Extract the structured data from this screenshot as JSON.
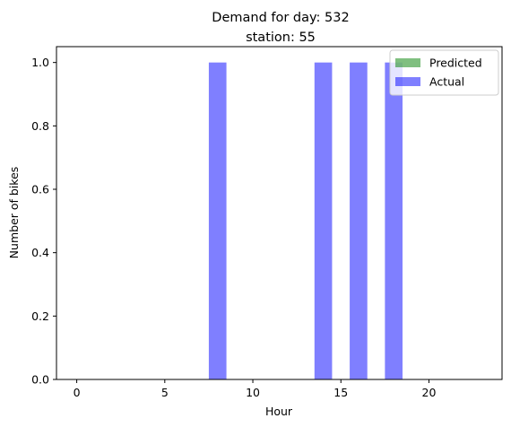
{
  "chart_data": {
    "type": "bar",
    "title_line1": "Demand for day: 532",
    "title_line2": "station: 55",
    "xlabel": "Hour",
    "ylabel": "Number of bikes",
    "xlim": [
      -1.15,
      24.15
    ],
    "ylim": [
      0,
      1.05
    ],
    "xticks": [
      0,
      5,
      10,
      15,
      20
    ],
    "xtick_labels": [
      "0",
      "5",
      "10",
      "15",
      "20"
    ],
    "yticks": [
      0.0,
      0.2,
      0.4,
      0.6,
      0.8,
      1.0
    ],
    "ytick_labels": [
      "0.0",
      "0.2",
      "0.4",
      "0.6",
      "0.8",
      "1.0"
    ],
    "bar_width": 1,
    "x": [
      0,
      1,
      2,
      3,
      4,
      5,
      6,
      7,
      8,
      9,
      10,
      11,
      12,
      13,
      14,
      15,
      16,
      17,
      18,
      19,
      20,
      21,
      22,
      23
    ],
    "series": [
      {
        "name": "Predicted",
        "color": "#008000",
        "opacity": 0.5,
        "values": [
          0,
          0,
          0,
          0,
          0,
          0,
          0,
          0,
          0,
          0,
          0,
          0,
          0,
          0,
          0,
          0,
          0,
          0,
          0,
          0,
          0,
          0,
          0,
          0
        ]
      },
      {
        "name": "Actual",
        "color": "#0000ff",
        "opacity": 0.5,
        "values": [
          0,
          0,
          0,
          0,
          0,
          0,
          0,
          0,
          1,
          0,
          0,
          0,
          0,
          0,
          1,
          0,
          1,
          0,
          1,
          0,
          0,
          0,
          0,
          0
        ]
      }
    ],
    "legend_position": "upper right",
    "grid": false
  }
}
